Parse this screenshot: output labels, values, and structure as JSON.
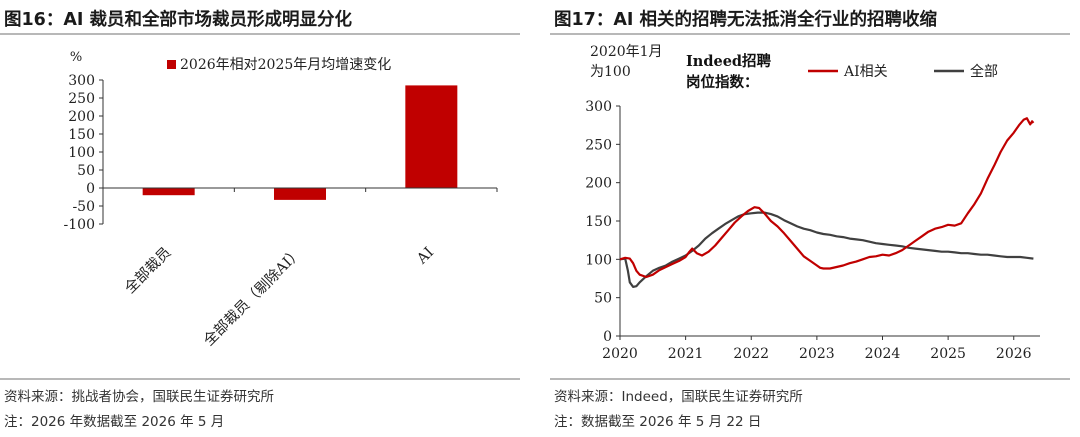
{
  "left": {
    "title": "图16：AI 裁员和全部市场裁员形成明显分化",
    "source": "资料来源：挑战者协会，国联民生证券研究所",
    "note": "注：2026 年数据截至 2026 年 5 月"
  },
  "right": {
    "title": "图17：AI 相关的招聘无法抵消全行业的招聘收缩",
    "source": "资料来源：Indeed，国联民生证券研究所",
    "note": "注：数据截至 2026 年 5 月 22 日"
  },
  "colors": {
    "ai": "#c00000",
    "all": "#404040"
  },
  "chart_data": [
    {
      "type": "bar",
      "unit": "%",
      "categories": [
        "全部裁员",
        "全部裁员（剔除AI）",
        "AI"
      ],
      "series": [
        {
          "name": "2026年相对2025年月均增速变化",
          "values": [
            -20,
            -33,
            285
          ]
        }
      ],
      "yticks": [
        300,
        250,
        200,
        150,
        100,
        50,
        0,
        -50,
        -100
      ],
      "ylim": [
        -100,
        300
      ]
    },
    {
      "type": "line",
      "ylabel": "2020年1月为100",
      "annotation": "Indeed招聘岗位指数：",
      "xticks": [
        2020,
        2021,
        2022,
        2023,
        2024,
        2025,
        2026
      ],
      "yticks": [
        300,
        250,
        200,
        150,
        100,
        50,
        0
      ],
      "xlim": [
        2020,
        2026.4
      ],
      "ylim": [
        0,
        300
      ],
      "series": [
        {
          "name": "AI相关",
          "x": [
            2020.0,
            2020.08,
            2020.15,
            2020.2,
            2020.25,
            2020.3,
            2020.4,
            2020.5,
            2020.6,
            2020.7,
            2020.8,
            2020.9,
            2021.0,
            2021.05,
            2021.1,
            2021.17,
            2021.25,
            2021.35,
            2021.45,
            2021.55,
            2021.65,
            2021.75,
            2021.85,
            2021.95,
            2022.05,
            2022.12,
            2022.2,
            2022.3,
            2022.4,
            2022.5,
            2022.6,
            2022.7,
            2022.8,
            2022.9,
            2023.0,
            2023.05,
            2023.1,
            2023.2,
            2023.3,
            2023.4,
            2023.5,
            2023.6,
            2023.7,
            2023.8,
            2023.9,
            2024.0,
            2024.1,
            2024.2,
            2024.3,
            2024.4,
            2024.5,
            2024.6,
            2024.7,
            2024.8,
            2024.9,
            2025.0,
            2025.1,
            2025.2,
            2025.3,
            2025.4,
            2025.5,
            2025.6,
            2025.7,
            2025.8,
            2025.9,
            2026.0,
            2026.08,
            2026.15,
            2026.2,
            2026.25,
            2026.28,
            2026.3
          ],
          "values": [
            100,
            102,
            101,
            95,
            85,
            80,
            77,
            80,
            86,
            90,
            94,
            98,
            103,
            109,
            114,
            108,
            105,
            110,
            118,
            128,
            138,
            148,
            156,
            163,
            168,
            167,
            160,
            150,
            143,
            134,
            124,
            114,
            104,
            98,
            92,
            89,
            88,
            88,
            90,
            92,
            95,
            97,
            100,
            103,
            104,
            106,
            105,
            108,
            112,
            118,
            124,
            130,
            136,
            140,
            142,
            145,
            144,
            147,
            160,
            172,
            186,
            205,
            222,
            240,
            255,
            265,
            275,
            282,
            284,
            276,
            280,
            278
          ]
        },
        {
          "name": "全部",
          "x": [
            2020.0,
            2020.08,
            2020.12,
            2020.15,
            2020.2,
            2020.25,
            2020.3,
            2020.4,
            2020.5,
            2020.6,
            2020.7,
            2020.8,
            2020.9,
            2021.0,
            2021.1,
            2021.2,
            2021.3,
            2021.4,
            2021.5,
            2021.6,
            2021.7,
            2021.8,
            2021.9,
            2022.0,
            2022.1,
            2022.2,
            2022.3,
            2022.4,
            2022.5,
            2022.6,
            2022.7,
            2022.8,
            2022.9,
            2023.0,
            2023.1,
            2023.2,
            2023.3,
            2023.4,
            2023.5,
            2023.6,
            2023.7,
            2023.8,
            2023.9,
            2024.0,
            2024.1,
            2024.2,
            2024.3,
            2024.4,
            2024.5,
            2024.6,
            2024.7,
            2024.8,
            2024.9,
            2025.0,
            2025.1,
            2025.2,
            2025.3,
            2025.4,
            2025.5,
            2025.6,
            2025.7,
            2025.8,
            2025.9,
            2026.0,
            2026.1,
            2026.2,
            2026.3
          ],
          "values": [
            100,
            101,
            85,
            70,
            64,
            65,
            70,
            78,
            85,
            89,
            92,
            97,
            101,
            105,
            111,
            118,
            127,
            134,
            140,
            146,
            151,
            156,
            159,
            160,
            161,
            161,
            159,
            156,
            151,
            147,
            143,
            140,
            138,
            135,
            133,
            132,
            130,
            129,
            127,
            126,
            125,
            123,
            121,
            120,
            119,
            118,
            117,
            115,
            114,
            113,
            112,
            111,
            110,
            110,
            109,
            108,
            108,
            107,
            106,
            106,
            105,
            104,
            103,
            103,
            103,
            102,
            101
          ]
        }
      ]
    }
  ]
}
